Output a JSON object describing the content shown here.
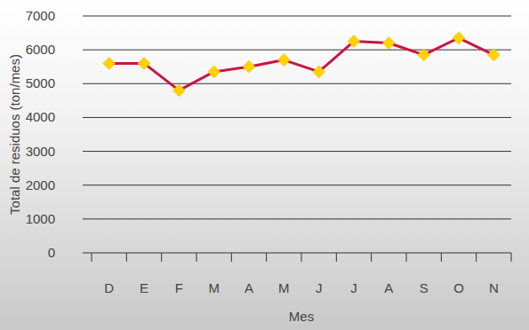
{
  "chart_data": {
    "type": "line",
    "x_label": "Mes",
    "y_label": "Total de residuos (ton/mes)",
    "categories": [
      "D",
      "E",
      "F",
      "M",
      "A",
      "M",
      "J",
      "J",
      "A",
      "S",
      "O",
      "N"
    ],
    "values": [
      5600,
      5600,
      4800,
      5350,
      5500,
      5700,
      5350,
      6250,
      6200,
      5850,
      6350,
      5850
    ],
    "color": "#c8163f",
    "marker": "diamond",
    "ylim": [
      0,
      7000
    ],
    "yticks": [
      0,
      1000,
      2000,
      3000,
      4000,
      5000,
      6000,
      7000
    ],
    "grid": true
  }
}
